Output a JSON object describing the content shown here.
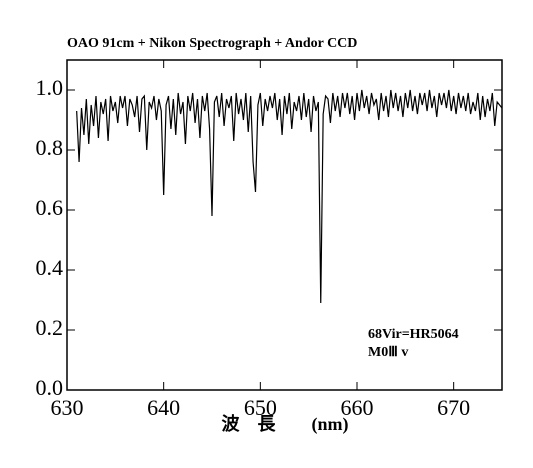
{
  "chart_data": {
    "type": "line",
    "title": "OAO 91cm + Nikon Spectrograph + Andor CCD",
    "x_label": "波　長　　(nm)",
    "annotations": [
      "68Vir=HR5064",
      "M0Ⅲ v"
    ],
    "color": "#000000",
    "xlim": [
      630,
      675
    ],
    "ylim": [
      0,
      1.1
    ],
    "xticks": [
      630,
      640,
      650,
      660,
      670
    ],
    "yticks": [
      {
        "value": 0,
        "label": "0.0"
      },
      {
        "value": 0.2,
        "label": "0.2"
      },
      {
        "value": 0.4,
        "label": "0.4"
      },
      {
        "value": 0.6,
        "label": "0.6"
      },
      {
        "value": 0.8,
        "label": "0.8"
      },
      {
        "value": 1,
        "label": "1.0"
      }
    ],
    "x": [
      631,
      631.25,
      631.5,
      631.75,
      632,
      632.25,
      632.5,
      632.75,
      633,
      633.25,
      633.5,
      633.75,
      634,
      634.25,
      634.5,
      634.75,
      635,
      635.25,
      635.5,
      635.75,
      636,
      636.25,
      636.5,
      636.75,
      637,
      637.25,
      637.5,
      637.75,
      638,
      638.25,
      638.5,
      638.75,
      639,
      639.25,
      639.5,
      639.75,
      640,
      640.25,
      640.5,
      640.75,
      641,
      641.25,
      641.5,
      641.75,
      642,
      642.25,
      642.5,
      642.75,
      643,
      643.25,
      643.5,
      643.75,
      644,
      644.25,
      644.5,
      644.75,
      645,
      645.25,
      645.5,
      645.75,
      646,
      646.25,
      646.5,
      646.75,
      647,
      647.25,
      647.5,
      647.75,
      648,
      648.25,
      648.5,
      648.75,
      649,
      649.25,
      649.5,
      649.75,
      650,
      650.25,
      650.5,
      650.75,
      651,
      651.25,
      651.5,
      651.75,
      652,
      652.25,
      652.5,
      652.75,
      653,
      653.25,
      653.5,
      653.75,
      654,
      654.25,
      654.5,
      654.75,
      655,
      655.25,
      655.5,
      655.75,
      656,
      656.25,
      656.5,
      656.75,
      657,
      657.25,
      657.5,
      657.75,
      658,
      658.25,
      658.5,
      658.75,
      659,
      659.25,
      659.5,
      659.75,
      660,
      660.25,
      660.5,
      660.75,
      661,
      661.25,
      661.5,
      661.75,
      662,
      662.25,
      662.5,
      662.75,
      663,
      663.25,
      663.5,
      663.75,
      664,
      664.25,
      664.5,
      664.75,
      665,
      665.25,
      665.5,
      665.75,
      666,
      666.25,
      666.5,
      666.75,
      667,
      667.25,
      667.5,
      667.75,
      668,
      668.25,
      668.5,
      668.75,
      669,
      669.25,
      669.5,
      669.75,
      670,
      670.25,
      670.5,
      670.75,
      671,
      671.25,
      671.5,
      671.75,
      672,
      672.25,
      672.5,
      672.75,
      673,
      673.25,
      673.5,
      673.75,
      674,
      674.25,
      674.5,
      674.75,
      675
    ],
    "values": [
      0.93,
      0.76,
      0.94,
      0.85,
      0.97,
      0.82,
      0.95,
      0.88,
      0.98,
      0.84,
      0.96,
      0.92,
      0.97,
      0.83,
      0.98,
      0.93,
      0.96,
      0.89,
      0.98,
      0.94,
      0.98,
      0.88,
      0.97,
      0.95,
      0.91,
      0.98,
      0.86,
      0.97,
      0.98,
      0.8,
      0.96,
      0.94,
      0.98,
      0.9,
      0.97,
      0.93,
      0.65,
      0.95,
      0.98,
      0.87,
      0.97,
      0.85,
      0.99,
      0.92,
      0.96,
      0.82,
      0.98,
      0.93,
      0.99,
      0.89,
      0.97,
      0.84,
      0.98,
      0.93,
      0.99,
      0.87,
      0.58,
      0.96,
      0.98,
      0.91,
      0.99,
      0.88,
      0.97,
      0.94,
      0.98,
      0.83,
      0.99,
      0.92,
      0.97,
      0.9,
      0.99,
      0.86,
      0.98,
      0.76,
      0.66,
      0.95,
      0.99,
      0.88,
      0.97,
      0.93,
      0.98,
      0.94,
      0.99,
      0.9,
      0.97,
      0.85,
      0.98,
      0.92,
      0.99,
      0.87,
      0.96,
      0.93,
      0.98,
      0.9,
      0.99,
      0.91,
      0.97,
      0.86,
      0.98,
      0.93,
      0.96,
      0.29,
      0.92,
      0.98,
      0.97,
      0.89,
      0.99,
      0.93,
      0.98,
      0.91,
      0.99,
      0.94,
      0.99,
      0.92,
      0.98,
      0.9,
      0.99,
      0.93,
      1.0,
      0.94,
      0.98,
      0.92,
      0.99,
      0.95,
      0.97,
      0.9,
      0.99,
      0.93,
      0.98,
      0.91,
      1.0,
      0.94,
      0.99,
      0.93,
      0.98,
      0.91,
      0.99,
      0.94,
      1.0,
      0.93,
      0.98,
      0.92,
      0.99,
      0.95,
      0.99,
      0.93,
      1.0,
      0.94,
      0.98,
      0.91,
      0.99,
      0.95,
      0.99,
      0.94,
      1.0,
      0.93,
      0.98,
      0.92,
      0.99,
      0.94,
      0.98,
      0.93,
      0.99,
      0.92,
      0.96,
      0.93,
      0.99,
      0.9,
      0.98,
      0.91,
      0.97,
      0.93,
      0.99,
      0.88,
      0.96,
      0.95,
      0.94
    ]
  }
}
